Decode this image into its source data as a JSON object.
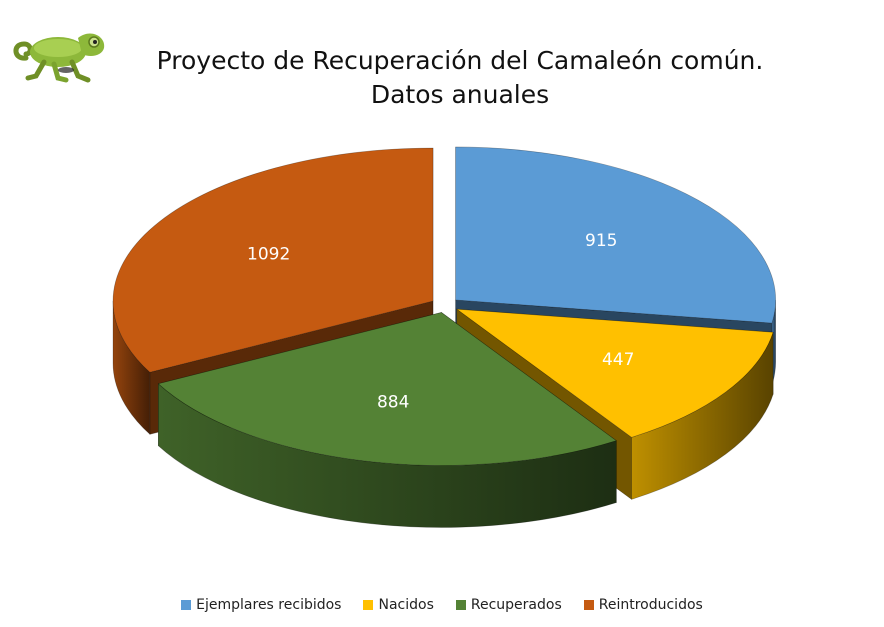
{
  "chart_data": {
    "type": "pie",
    "style": "3d-exploded",
    "title_lines": [
      "Proyecto de Recuperación del Camaleón común.",
      "Datos anuales"
    ],
    "categories": [
      "Ejemplares recibidos",
      "Nacidos",
      "Recuperados",
      "Reintroducidos"
    ],
    "values": [
      915,
      447,
      884,
      1092
    ],
    "colors": [
      "#5B9BD5",
      "#FFC000",
      "#548235",
      "#C55A11"
    ],
    "legend_position": "bottom"
  },
  "logo": {
    "icon": "chameleon-icon"
  }
}
